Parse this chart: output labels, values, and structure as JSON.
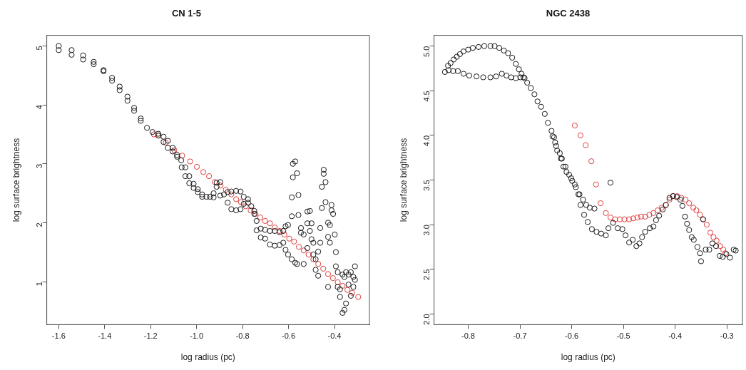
{
  "chart_data": [
    {
      "type": "scatter",
      "title": "CN 1-5",
      "xlabel": "log radius (pc)",
      "ylabel": "log surface brightness",
      "xlim": [
        -1.652,
        -0.248
      ],
      "ylim": [
        0.27,
        5.18
      ],
      "xticks": [
        -1.6,
        -1.4,
        -1.2,
        {
          "value": -1,
          "label": "-1.0"
        },
        -0.8,
        -0.6,
        -0.4
      ],
      "yticks": [
        1,
        2,
        3,
        4,
        5
      ],
      "marker": "circle",
      "series": [
        {
          "color": "#1a1a1a",
          "x": [
            -1.6,
            -1.6,
            -1.544,
            -1.544,
            -1.494,
            -1.494,
            -1.448,
            -1.448,
            -1.405,
            -1.405,
            -1.368,
            -1.368,
            -1.335,
            -1.335,
            -1.301,
            -1.301,
            -1.272,
            -1.272,
            -1.243,
            -1.243,
            -1.216,
            -1.192,
            -1.167,
            -1.167,
            -1.144,
            -1.144,
            -1.125,
            -1.125,
            -1.104,
            -1.104,
            -1.085,
            -1.085,
            -1.067,
            -1.065,
            -1.049,
            -1.049,
            -1.032,
            -1.032,
            -1.013,
            -1.013,
            -0.995,
            -0.995,
            -0.976,
            -0.976,
            -0.957,
            -0.942,
            -0.926,
            -0.926,
            -0.913,
            -0.913,
            -0.897,
            -0.897,
            -0.881,
            -0.865,
            -0.865,
            -0.849,
            -0.849,
            -0.828,
            -0.828,
            -0.809,
            -0.809,
            -0.795,
            -0.795,
            -0.776,
            -0.776,
            -0.762,
            -0.749,
            -0.749,
            -0.739,
            -0.739,
            -0.721,
            -0.721,
            -0.702,
            -0.702,
            -0.681,
            -0.681,
            -0.66,
            -0.66,
            -0.639,
            -0.639,
            -0.623,
            -0.623,
            -0.613,
            -0.613,
            -0.602,
            -0.602,
            -0.586,
            -0.586,
            -0.586,
            -0.581,
            -0.581,
            -0.571,
            -0.571,
            -0.563,
            -0.563,
            -0.557,
            -0.557,
            -0.546,
            -0.546,
            -0.534,
            -0.534,
            -0.518,
            -0.518,
            -0.518,
            -0.507,
            -0.507,
            -0.5,
            -0.5,
            -0.492,
            -0.492,
            -0.482,
            -0.482,
            -0.471,
            -0.471,
            -0.462,
            -0.462,
            -0.455,
            -0.455,
            -0.447,
            -0.447,
            -0.439,
            -0.439,
            -0.428,
            -0.428,
            -0.428,
            -0.42,
            -0.42,
            -0.413,
            -0.413,
            -0.406,
            -0.399,
            -0.394,
            -0.394,
            -0.386,
            -0.386,
            -0.376,
            -0.376,
            -0.365,
            -0.365,
            -0.357,
            -0.357,
            -0.35,
            -0.35,
            -0.339,
            -0.339,
            -0.329,
            -0.329,
            -0.318,
            -0.318,
            -0.311,
            -0.311
          ],
          "values": [
            5.0,
            4.93,
            4.93,
            4.85,
            4.84,
            4.77,
            4.73,
            4.69,
            4.59,
            4.57,
            4.46,
            4.41,
            4.31,
            4.25,
            4.14,
            4.07,
            3.95,
            3.9,
            3.77,
            3.73,
            3.61,
            3.54,
            3.51,
            3.48,
            3.46,
            3.37,
            3.39,
            3.27,
            3.27,
            3.21,
            3.15,
            3.12,
            3.06,
            2.94,
            2.94,
            2.79,
            2.79,
            2.67,
            2.66,
            2.59,
            2.57,
            2.52,
            2.48,
            2.44,
            2.44,
            2.44,
            2.5,
            2.43,
            2.68,
            2.61,
            2.69,
            2.46,
            2.48,
            2.34,
            2.52,
            2.23,
            2.53,
            2.21,
            2.54,
            2.23,
            2.53,
            2.32,
            2.44,
            2.4,
            2.34,
            2.28,
            2.15,
            2.2,
            2.03,
            1.87,
            1.9,
            1.75,
            1.88,
            1.73,
            1.86,
            1.63,
            1.86,
            1.61,
            1.84,
            1.62,
            1.86,
            1.66,
            1.94,
            1.54,
            1.96,
            1.46,
            2.43,
            2.11,
            1.38,
            2.77,
            3.0,
            3.04,
            1.32,
            2.84,
            1.3,
            2.47,
            2.13,
            1.91,
            1.83,
            1.8,
            1.3,
            1.99,
            2.19,
            1.57,
            2.2,
            1.86,
            1.99,
            1.72,
            1.66,
            1.46,
            1.2,
            1.38,
            1.51,
            1.1,
            1.91,
            1.66,
            2.25,
            2.61,
            2.83,
            2.9,
            2.69,
            2.35,
            2.0,
            1.76,
            0.91,
            1.96,
            1.66,
            2.21,
            2.3,
            2.15,
            1.8,
            1.5,
            1.26,
            1.16,
            0.91,
            0.87,
            0.74,
            0.47,
            1.12,
            0.52,
            1.08,
            0.63,
            1.16,
            1.12,
            0.95,
            1.16,
            0.76,
            1.08,
            0.91,
            1.26,
            1.03
          ]
        },
        {
          "color": "#e0403f",
          "x": [
            -1.186,
            -1.165,
            -1.134,
            -1.097,
            -1.063,
            -1.028,
            -0.999,
            -0.971,
            -0.946,
            -0.921,
            -0.896,
            -0.873,
            -0.849,
            -0.828,
            -0.807,
            -0.786,
            -0.765,
            -0.744,
            -0.723,
            -0.702,
            -0.681,
            -0.66,
            -0.639,
            -0.618,
            -0.597,
            -0.576,
            -0.555,
            -0.534,
            -0.513,
            -0.492,
            -0.471,
            -0.449,
            -0.428,
            -0.407,
            -0.386,
            -0.365,
            -0.344,
            -0.323,
            -0.297
          ],
          "values": [
            3.5,
            3.48,
            3.36,
            3.23,
            3.14,
            3.04,
            2.95,
            2.86,
            2.79,
            2.69,
            2.63,
            2.56,
            2.48,
            2.4,
            2.35,
            2.28,
            2.21,
            2.15,
            2.09,
            2.03,
            1.99,
            1.92,
            1.86,
            1.8,
            1.73,
            1.68,
            1.59,
            1.53,
            1.46,
            1.38,
            1.3,
            1.22,
            1.13,
            1.06,
            0.99,
            0.93,
            0.86,
            0.81,
            0.74
          ]
        }
      ]
    },
    {
      "type": "scatter",
      "title": "NGC 2438",
      "xlabel": "log radius (pc)",
      "ylabel": "log surface brightness",
      "xlim": [
        -0.866,
        -0.27
      ],
      "ylim": [
        1.88,
        5.12
      ],
      "xticks": [
        -0.8,
        -0.7,
        -0.6,
        -0.5,
        -0.4,
        -0.3
      ],
      "yticks": [
        {
          "value": 2,
          "label": "2.0"
        },
        2.5,
        {
          "value": 3,
          "label": "3.0"
        },
        3.5,
        {
          "value": 4,
          "label": "4.0"
        },
        4.5,
        {
          "value": 5,
          "label": "5.0"
        }
      ],
      "marker": "circle",
      "series": [
        {
          "color": "#1a1a1a",
          "x": [
            -0.845,
            -0.839,
            -0.834,
            -0.828,
            -0.822,
            -0.816,
            -0.809,
            -0.8,
            -0.791,
            -0.78,
            -0.769,
            -0.757,
            -0.749,
            -0.74,
            -0.731,
            -0.723,
            -0.715,
            -0.708,
            -0.702,
            -0.697,
            -0.693,
            -0.838,
            -0.829,
            -0.82,
            -0.809,
            -0.798,
            -0.784,
            -0.771,
            -0.757,
            -0.746,
            -0.735,
            -0.726,
            -0.717,
            -0.708,
            -0.699,
            -0.691,
            -0.686,
            -0.679,
            -0.672,
            -0.666,
            -0.659,
            -0.652,
            -0.646,
            -0.639,
            -0.634,
            -0.63,
            -0.623,
            -0.619,
            -0.612,
            -0.605,
            -0.599,
            -0.592,
            -0.585,
            -0.578,
            -0.572,
            -0.565,
            -0.556,
            -0.637,
            -0.632,
            -0.628,
            -0.621,
            -0.616,
            -0.61,
            -0.601,
            -0.594,
            -0.587,
            -0.583,
            -0.576,
            -0.569,
            -0.561,
            -0.552,
            -0.543,
            -0.534,
            -0.529,
            -0.525,
            -0.52,
            -0.511,
            -0.502,
            -0.496,
            -0.489,
            -0.482,
            -0.475,
            -0.469,
            -0.464,
            -0.458,
            -0.449,
            -0.442,
            -0.437,
            -0.431,
            -0.424,
            -0.418,
            -0.411,
            -0.404,
            -0.397,
            -0.39,
            -0.386,
            -0.381,
            -0.377,
            -0.373,
            -0.368,
            -0.364,
            -0.357,
            -0.352,
            -0.35,
            -0.346,
            -0.341,
            -0.334,
            -0.328,
            -0.321,
            -0.314,
            -0.308,
            -0.301,
            -0.294,
            -0.287,
            -0.283
          ],
          "values": [
            4.71,
            4.78,
            4.81,
            4.85,
            4.88,
            4.91,
            4.94,
            4.96,
            4.98,
            4.99,
            5.0,
            5.0,
            5.0,
            4.98,
            4.95,
            4.92,
            4.87,
            4.8,
            4.74,
            4.69,
            4.65,
            4.73,
            4.72,
            4.72,
            4.69,
            4.67,
            4.66,
            4.65,
            4.65,
            4.66,
            4.69,
            4.67,
            4.65,
            4.64,
            4.65,
            4.64,
            4.59,
            4.53,
            4.46,
            4.38,
            4.32,
            4.24,
            4.14,
            4.05,
            3.98,
            3.88,
            3.8,
            3.74,
            3.65,
            3.56,
            3.49,
            3.42,
            3.34,
            3.28,
            3.22,
            3.19,
            3.18,
            3.99,
            3.92,
            3.83,
            3.74,
            3.65,
            3.59,
            3.52,
            3.45,
            3.34,
            3.22,
            3.11,
            3.03,
            2.95,
            2.92,
            2.9,
            2.88,
            2.96,
            3.47,
            3.02,
            2.96,
            2.95,
            2.88,
            2.8,
            2.83,
            2.76,
            2.79,
            2.86,
            2.92,
            2.96,
            2.98,
            3.05,
            3.1,
            3.17,
            3.22,
            3.3,
            3.32,
            3.31,
            3.28,
            3.21,
            3.09,
            3.01,
            2.94,
            2.86,
            2.83,
            2.75,
            2.68,
            2.59,
            3.06,
            2.72,
            2.72,
            2.79,
            2.76,
            2.65,
            2.64,
            2.67,
            2.63,
            2.72,
            2.71
          ]
        },
        {
          "color": "#e0403f",
          "x": [
            -0.594,
            -0.583,
            -0.573,
            -0.562,
            -0.553,
            -0.544,
            -0.534,
            -0.525,
            -0.516,
            -0.507,
            -0.498,
            -0.489,
            -0.481,
            -0.473,
            -0.466,
            -0.458,
            -0.45,
            -0.442,
            -0.434,
            -0.426,
            -0.418,
            -0.411,
            -0.404,
            -0.396,
            -0.388,
            -0.38,
            -0.373,
            -0.365,
            -0.359,
            -0.352,
            -0.346,
            -0.339,
            -0.332,
            -0.326,
            -0.32,
            -0.313,
            -0.307,
            -0.303
          ],
          "values": [
            4.11,
            4.0,
            3.89,
            3.71,
            3.45,
            3.24,
            3.13,
            3.08,
            3.06,
            3.06,
            3.06,
            3.06,
            3.07,
            3.08,
            3.09,
            3.09,
            3.11,
            3.13,
            3.16,
            3.19,
            3.22,
            3.28,
            3.32,
            3.32,
            3.3,
            3.28,
            3.24,
            3.19,
            3.16,
            3.11,
            3.06,
            3.0,
            2.91,
            2.86,
            2.82,
            2.76,
            2.72,
            2.68
          ]
        }
      ]
    }
  ]
}
